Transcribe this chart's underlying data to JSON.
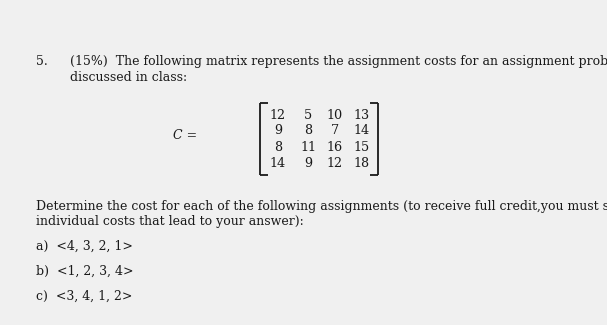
{
  "question_number": "5.",
  "percent": "(15%)",
  "intro_line1": "The following matrix represents the assignment costs for an assignment problem, which is",
  "intro_line2": "discussed in class:",
  "matrix_label": "C =",
  "matrix": [
    [
      12,
      5,
      10,
      13
    ],
    [
      9,
      8,
      7,
      14
    ],
    [
      8,
      11,
      16,
      15
    ],
    [
      14,
      9,
      12,
      18
    ]
  ],
  "body_line1": "Determine the cost for each of the following assignments (to receive full credit,you must show all",
  "body_line2": "individual costs that lead to your answer):",
  "item_a": "a)  <4, 3, 2, 1>",
  "item_b": "b)  <1, 2, 3, 4>",
  "item_c": "c)  <3, 4, 1, 2>",
  "bg_color": "#f0f0f0",
  "text_color": "#1a1a1a",
  "font_size": 9.0,
  "matrix_font_size": 9.2,
  "fig_width": 6.07,
  "fig_height": 3.25,
  "dpi": 100
}
